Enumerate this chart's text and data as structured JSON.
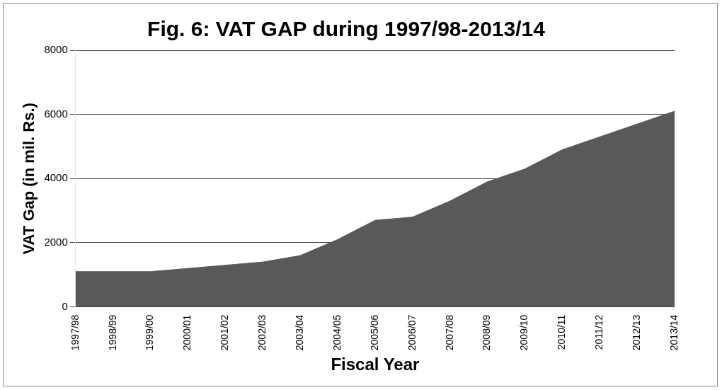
{
  "chart_data": {
    "type": "area",
    "title": "Fig. 6: VAT GAP during 1997/98-2013/14",
    "xlabel": "Fiscal Year",
    "ylabel": "VAT Gap (in mil. Rs.)",
    "categories": [
      "1997/98",
      "1998/99",
      "1999/00",
      "2000/01",
      "2001/02",
      "2002/03",
      "2003/04",
      "2004/05",
      "2005/06",
      "2006/07",
      "2007/08",
      "2008/09",
      "2009/10",
      "2010/11",
      "2011/12",
      "2012/13",
      "2013/14"
    ],
    "series": [
      {
        "color": "#595959",
        "values": [
          1100,
          1100,
          1100,
          1200,
          1300,
          1400,
          1600,
          2100,
          2700,
          2800,
          3300,
          3900,
          4300,
          4900,
          5300,
          5700,
          6100
        ]
      }
    ],
    "ylim": [
      0,
      8000
    ],
    "yticks": [
      0,
      2000,
      4000,
      6000,
      8000
    ],
    "grid": "y",
    "legend": false
  }
}
